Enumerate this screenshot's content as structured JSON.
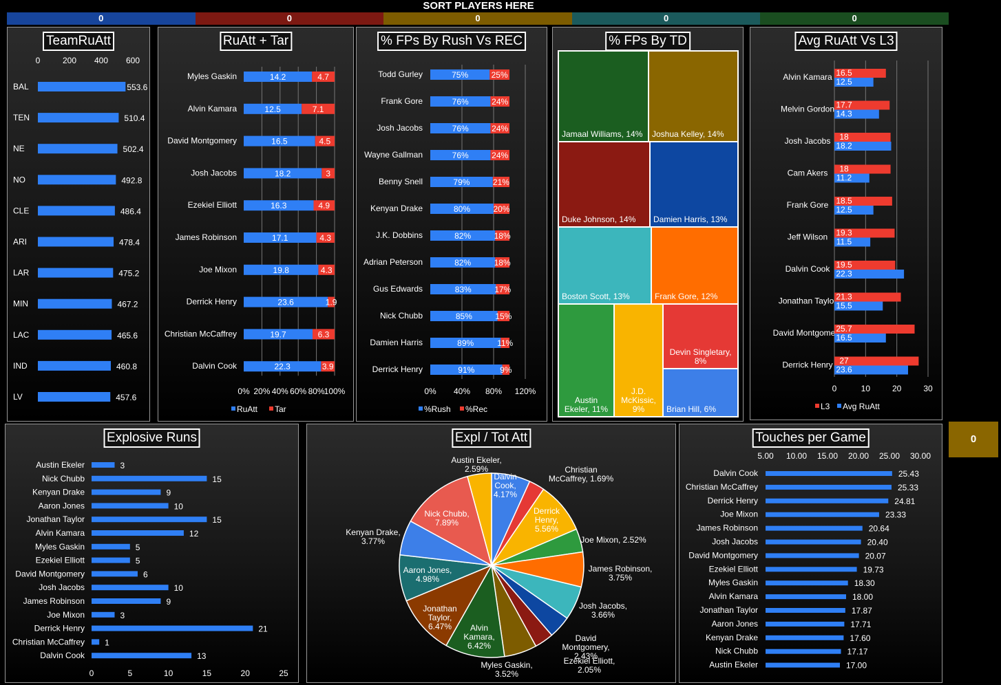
{
  "header": {
    "sort_label": "SORT PLAYERS HERE",
    "segments": [
      {
        "value": "0",
        "color": "#17459c"
      },
      {
        "value": "0",
        "color": "#7d1912"
      },
      {
        "value": "0",
        "color": "#7d5c00"
      },
      {
        "value": "0",
        "color": "#1b5a5c"
      },
      {
        "value": "0",
        "color": "#1a4d20"
      }
    ],
    "side_box": {
      "value": "0",
      "color": "#8a6600"
    }
  },
  "colors": {
    "blue": "#2f7ff5",
    "red": "#ee3b2f"
  },
  "chart_data": [
    {
      "id": "team_ruatt",
      "type": "bar",
      "title": "TeamRuAtt",
      "categories": [
        "BAL",
        "TEN",
        "NE",
        "NO",
        "CLE",
        "ARI",
        "LAR",
        "MIN",
        "LAC",
        "IND",
        "LV"
      ],
      "values": [
        553.6,
        510.4,
        502.4,
        492.8,
        486.4,
        478.4,
        475.2,
        467.2,
        465.6,
        460.8,
        457.6
      ],
      "value_labels": [
        "553.6",
        "510.4",
        "502.4",
        "492.8",
        "486.4",
        "478.4",
        "475.2",
        "467.2",
        "465.6",
        "460.8",
        "457.6"
      ],
      "xticks": [
        "0",
        "200",
        "400",
        "600"
      ],
      "xlim": [
        0,
        600
      ]
    },
    {
      "id": "ruatt_tar",
      "type": "bar",
      "stacked_percent": true,
      "title": "RuAtt + Tar",
      "categories": [
        "Myles Gaskin",
        "Alvin Kamara",
        "David Montgomery",
        "Josh Jacobs",
        "Ezekiel Elliott",
        "James Robinson",
        "Joe Mixon",
        "Derrick Henry",
        "Christian McCaffrey",
        "Dalvin Cook"
      ],
      "series": [
        {
          "name": "RuAtt",
          "values": [
            14.2,
            12.5,
            16.5,
            18.2,
            16.3,
            17.1,
            19.8,
            23.6,
            19.7,
            22.3
          ]
        },
        {
          "name": "Tar",
          "values": [
            4.7,
            7.1,
            4.5,
            3,
            4.9,
            4.3,
            4.3,
            1.9,
            6.3,
            3.9
          ]
        }
      ],
      "xticks": [
        "0%",
        "20%",
        "40%",
        "60%",
        "80%",
        "100%"
      ]
    },
    {
      "id": "fps_rush_rec",
      "type": "bar",
      "stacked_percent": true,
      "title": "% FPs By Rush Vs REC",
      "categories": [
        "Todd Gurley",
        "Frank Gore",
        "Josh Jacobs",
        "Wayne Gallman",
        "Benny Snell",
        "Kenyan Drake",
        "J.K. Dobbins",
        "Adrian Peterson",
        "Gus Edwards",
        "Nick Chubb",
        "Damien Harris",
        "Derrick Henry"
      ],
      "series": [
        {
          "name": "%Rush",
          "values": [
            75,
            76,
            76,
            76,
            79,
            80,
            82,
            82,
            83,
            85,
            89,
            91
          ],
          "labels": [
            "75%",
            "76%",
            "76%",
            "76%",
            "79%",
            "80%",
            "82%",
            "82%",
            "83%",
            "85%",
            "89%",
            "91%"
          ]
        },
        {
          "name": "%Rec",
          "values": [
            25,
            24,
            24,
            24,
            21,
            20,
            18,
            18,
            17,
            15,
            11,
            9
          ],
          "labels": [
            "25%",
            "24%",
            "24%",
            "24%",
            "21%",
            "20%",
            "18%",
            "18%",
            "17%",
            "15%",
            "11%",
            "9%"
          ]
        }
      ],
      "xticks": [
        "0%",
        "40%",
        "80%",
        "120%"
      ]
    },
    {
      "id": "fps_by_td",
      "type": "treemap",
      "title": "% FPs By TD",
      "items": [
        {
          "label": "Jamaal Williams, 14%",
          "color": "#1b5e20"
        },
        {
          "label": "Joshua Kelley, 14%",
          "color": "#8a6600"
        },
        {
          "label": "Duke Johnson, 14%",
          "color": "#8b1a12"
        },
        {
          "label": "Damien Harris, 13%",
          "color": "#0d47a1"
        },
        {
          "label": "Boston Scott, 13%",
          "color": "#3cb6bc"
        },
        {
          "label": "Frank Gore, 12%",
          "color": "#ff6d00"
        },
        {
          "label": "Austin Ekeler, 11%",
          "color": "#2e9a3e"
        },
        {
          "label": "J.D. McKissic, 9%",
          "color": "#f9b400"
        },
        {
          "label": "Devin Singletary, 8%",
          "color": "#e53935"
        },
        {
          "label": "Brian Hill, 6%",
          "color": "#3d7fe8"
        }
      ]
    },
    {
      "id": "avg_ruatt_l3",
      "type": "bar",
      "title": "Avg RuAtt Vs L3",
      "categories": [
        "Alvin Kamara",
        "Melvin Gordon",
        "Josh Jacobs",
        "Cam Akers",
        "Frank Gore",
        "Jeff Wilson",
        "Dalvin Cook",
        "Jonathan Taylor",
        "David Montgomery",
        "Derrick Henry"
      ],
      "series": [
        {
          "name": "L3",
          "values": [
            16.5,
            17.7,
            18,
            18,
            18.5,
            19.3,
            19.5,
            21.3,
            25.7,
            27
          ]
        },
        {
          "name": "Avg RuAtt",
          "values": [
            12.5,
            14.3,
            18.2,
            11.2,
            12.5,
            11.5,
            22.3,
            15.5,
            16.5,
            23.6
          ]
        }
      ],
      "xticks": [
        "0",
        "10",
        "20",
        "30"
      ],
      "xlim": [
        0,
        30
      ]
    },
    {
      "id": "explosive_runs",
      "type": "bar",
      "title": "Explosive Runs",
      "categories": [
        "Austin Ekeler",
        "Nick Chubb",
        "Kenyan Drake",
        "Aaron Jones",
        "Jonathan Taylor",
        "Alvin Kamara",
        "Myles Gaskin",
        "Ezekiel Elliott",
        "David Montgomery",
        "Josh Jacobs",
        "James Robinson",
        "Joe Mixon",
        "Derrick Henry",
        "Christian McCaffrey",
        "Dalvin Cook"
      ],
      "values": [
        3,
        15,
        9,
        10,
        15,
        12,
        5,
        5,
        6,
        10,
        9,
        3,
        21,
        1,
        13
      ],
      "xticks": [
        "0",
        "5",
        "10",
        "15",
        "20",
        "25"
      ],
      "xlim": [
        0,
        25
      ]
    },
    {
      "id": "expl_tot_att",
      "type": "pie",
      "title": "Expl / Tot Att",
      "slices": [
        {
          "name": "Dalvin Cook",
          "label": [
            "Dalvin",
            "Cook,",
            "4.17%"
          ],
          "value": 4.17,
          "color": "#3d7fe8"
        },
        {
          "name": "Christian McCaffrey",
          "label": [
            "Christian",
            "McCaffrey, 1.69%"
          ],
          "value": 1.69,
          "color": "#e53935"
        },
        {
          "name": "Derrick Henry",
          "label": [
            "Derrick",
            "Henry,",
            "5.56%"
          ],
          "value": 5.56,
          "color": "#f9b400"
        },
        {
          "name": "Joe Mixon",
          "label": [
            "Joe Mixon, 2.52%"
          ],
          "value": 2.52,
          "color": "#2e9a3e"
        },
        {
          "name": "James Robinson",
          "label": [
            "James Robinson,",
            "3.75%"
          ],
          "value": 3.75,
          "color": "#ff6d00"
        },
        {
          "name": "Josh Jacobs",
          "label": [
            "Josh Jacobs,",
            "3.66%"
          ],
          "value": 3.66,
          "color": "#3cb6bc"
        },
        {
          "name": "David Montgomery",
          "label": [
            "David",
            "Montgomery,",
            "2.43%"
          ],
          "value": 2.43,
          "color": "#0d47a1"
        },
        {
          "name": "Ezekiel Elliott",
          "label": [
            "Ezekiel Elliott,",
            "2.05%"
          ],
          "value": 2.05,
          "color": "#8b1a12"
        },
        {
          "name": "Myles Gaskin",
          "label": [
            "Myles Gaskin,",
            "3.52%"
          ],
          "value": 3.52,
          "color": "#7d5c00"
        },
        {
          "name": "Alvin Kamara",
          "label": [
            "Alvin",
            "Kamara,",
            "6.42%"
          ],
          "value": 6.42,
          "color": "#1b5e20"
        },
        {
          "name": "Jonathan Taylor",
          "label": [
            "Jonathan",
            "Taylor,",
            "6.47%"
          ],
          "value": 6.47,
          "color": "#8b3a00"
        },
        {
          "name": "Aaron Jones",
          "label": [
            "Aaron Jones,",
            "4.98%"
          ],
          "value": 4.98,
          "color": "#1b6e70"
        },
        {
          "name": "Kenyan Drake",
          "label": [
            "Kenyan Drake,",
            "3.77%"
          ],
          "value": 3.77,
          "color": "#3d7fe8"
        },
        {
          "name": "Nick Chubb",
          "label": [
            "Nick Chubb,",
            "7.89%"
          ],
          "value": 7.89,
          "color": "#e85a4f"
        },
        {
          "name": "Austin Ekeler",
          "label": [
            "Austin Ekeler,",
            "2.59%"
          ],
          "value": 2.59,
          "color": "#f9b400"
        }
      ]
    },
    {
      "id": "touches_per_game",
      "type": "bar",
      "title": "Touches per Game",
      "categories": [
        "Dalvin Cook",
        "Christian McCaffrey",
        "Derrick Henry",
        "Joe Mixon",
        "James Robinson",
        "Josh Jacobs",
        "David Montgomery",
        "Ezekiel Elliott",
        "Myles Gaskin",
        "Alvin Kamara",
        "Jonathan Taylor",
        "Aaron Jones",
        "Kenyan Drake",
        "Nick Chubb",
        "Austin Ekeler"
      ],
      "values": [
        25.43,
        25.33,
        24.81,
        23.33,
        20.64,
        20.4,
        20.07,
        19.73,
        18.3,
        18.0,
        17.87,
        17.71,
        17.6,
        17.17,
        17.0
      ],
      "value_labels": [
        "25.43",
        "25.33",
        "24.81",
        "23.33",
        "20.64",
        "20.40",
        "20.07",
        "19.73",
        "18.30",
        "18.00",
        "17.87",
        "17.71",
        "17.60",
        "17.17",
        "17.00"
      ],
      "xticks": [
        "5.00",
        "10.00",
        "15.00",
        "20.00",
        "25.00",
        "30.00"
      ],
      "xlim": [
        5,
        30
      ]
    }
  ]
}
